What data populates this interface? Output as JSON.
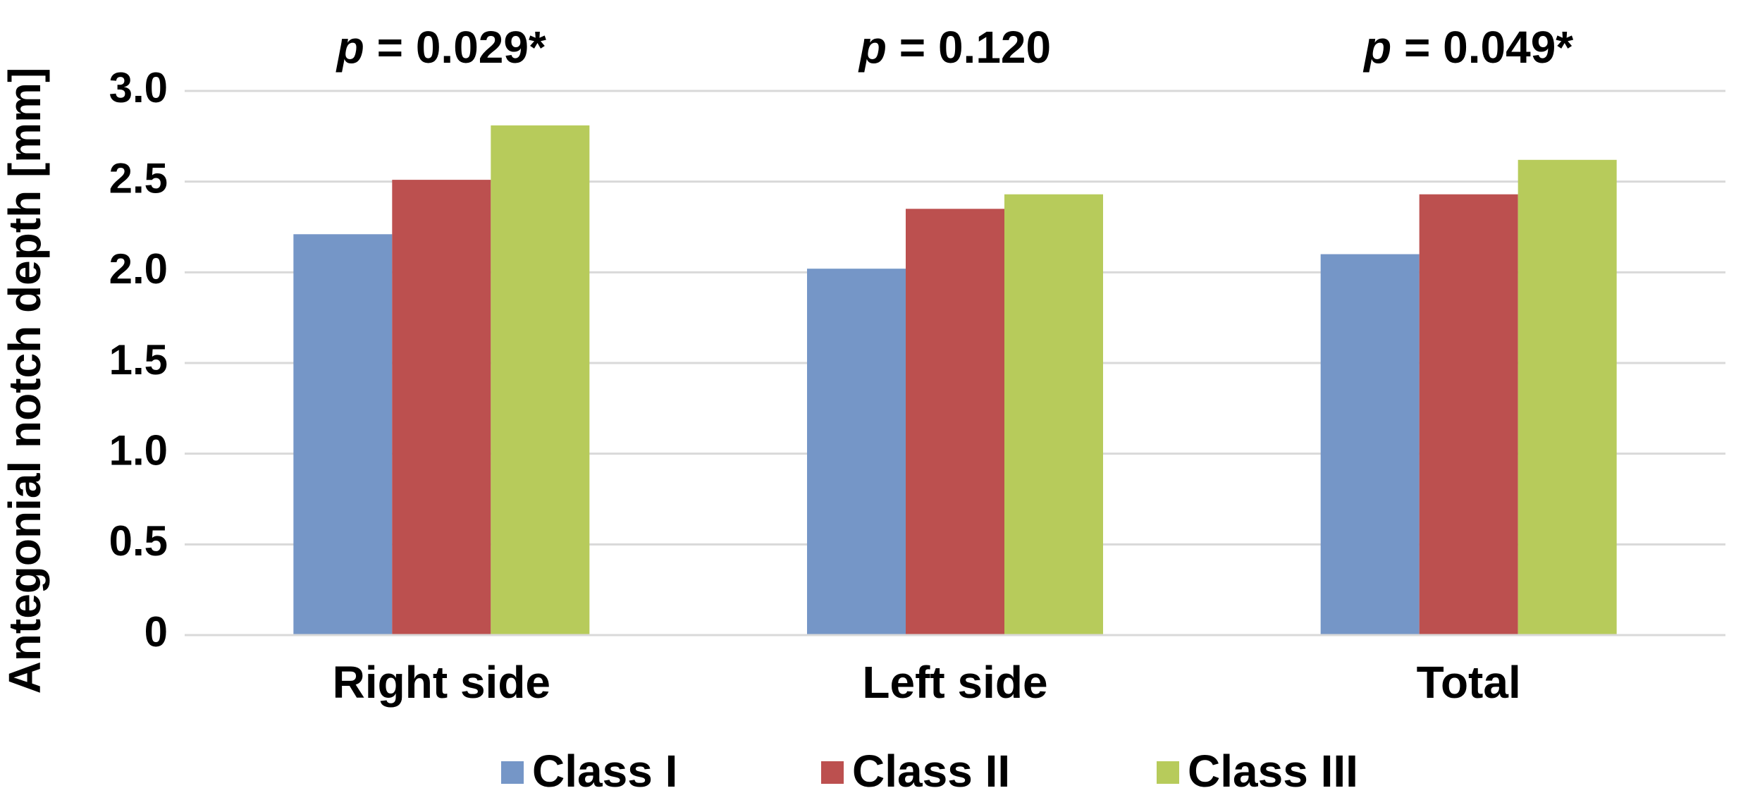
{
  "chart_data": {
    "type": "bar",
    "y_label": "Antegonial notch depth [mm]",
    "categories": [
      "Right side",
      "Left side",
      "Total"
    ],
    "annotations": [
      {
        "variable": "p",
        "text": "= 0.029*"
      },
      {
        "variable": "p",
        "text": "= 0.120"
      },
      {
        "variable": "p",
        "text": "= 0.049*"
      }
    ],
    "series": [
      {
        "name": "Class I",
        "color": "#7596c7",
        "values": [
          2.21,
          2.02,
          2.1
        ]
      },
      {
        "name": "Class II",
        "color": "#bc504f",
        "values": [
          2.51,
          2.35,
          2.43
        ]
      },
      {
        "name": "Class III",
        "color": "#b7cb5b",
        "values": [
          2.81,
          2.43,
          2.62
        ]
      }
    ],
    "ylim": [
      0,
      3
    ],
    "yticks": [
      0,
      {
        "value": 0.5,
        "label": "0.5"
      },
      {
        "value": 1,
        "label": "1.0"
      },
      {
        "value": 1.5,
        "label": "1.5"
      },
      {
        "value": 2,
        "label": "2.0"
      },
      {
        "value": 2.5,
        "label": "2.5"
      },
      {
        "value": 3,
        "label": "3.0"
      }
    ],
    "grid": true,
    "legend": "bottom"
  }
}
